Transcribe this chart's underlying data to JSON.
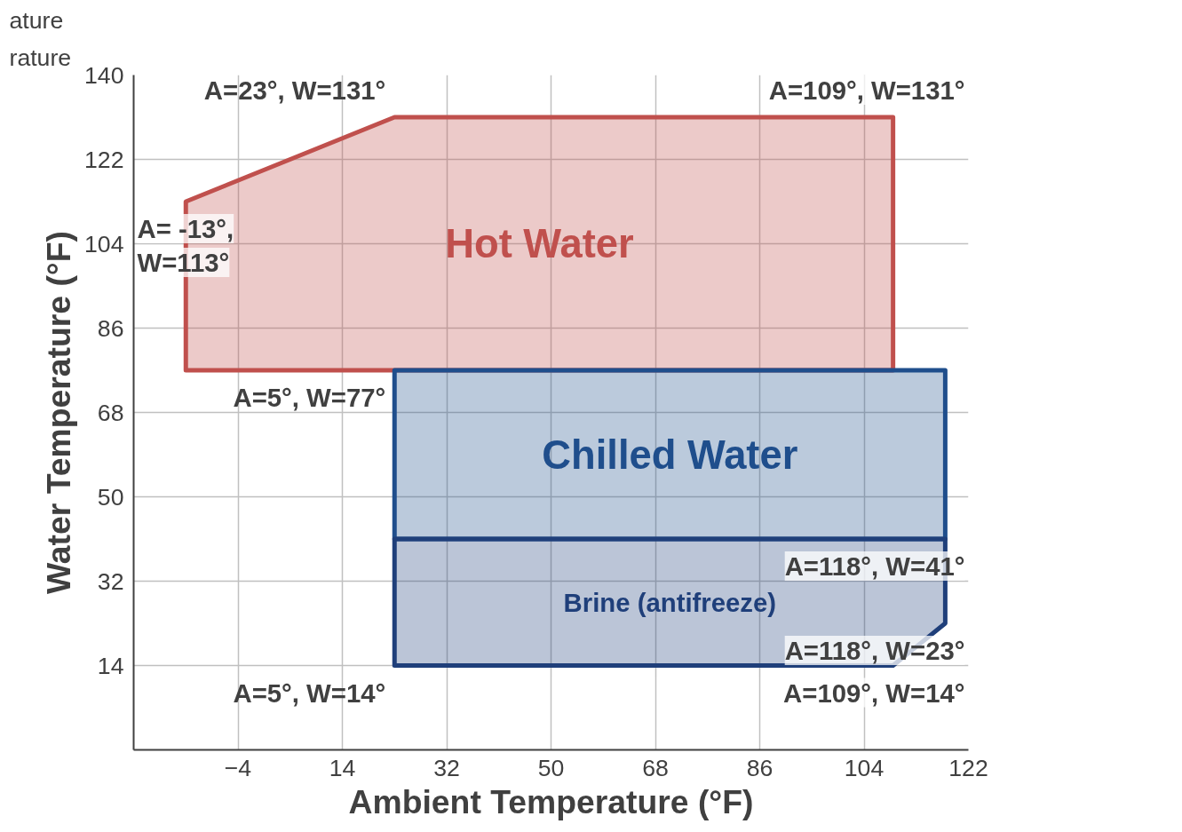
{
  "chart_data": {
    "type": "area",
    "xlabel": "Ambient Temperature (°F)",
    "ylabel": "Water Temperature (°F)",
    "xlim": [
      -22,
      122
    ],
    "ylim": [
      -4,
      140
    ],
    "xticks": [
      -4,
      14,
      32,
      50,
      68,
      86,
      104,
      122
    ],
    "yticks": [
      14,
      32,
      50,
      68,
      86,
      104,
      122,
      140
    ],
    "grid": true,
    "series": [
      {
        "name": "Hot Water",
        "color": "#c0504d",
        "x": [
          -13,
          -13,
          23,
          109,
          109
        ],
        "values": [
          77,
          113,
          131,
          131,
          77
        ]
      },
      {
        "name": "Chilled Water",
        "color": "#1f4e8c",
        "x": [
          23,
          23,
          118,
          118
        ],
        "values": [
          41,
          77,
          77,
          41
        ]
      },
      {
        "name": "Brine (antifreeze)",
        "color": "#1f3f7a",
        "x": [
          23,
          23,
          118,
          118,
          109
        ],
        "values": [
          14,
          41,
          41,
          23,
          14
        ]
      }
    ],
    "annotations": [
      "rature",
      "ature",
      {
        "text": "A=23°, W=131°",
        "x": 23,
        "y": 131
      },
      {
        "text": "A=109°, W=131°",
        "x": 109,
        "y": 131
      },
      {
        "text": "A= -13°,\nW=113°",
        "x": -13,
        "y": 113
      },
      {
        "text": "A=5°, W=77°",
        "x": 23,
        "y": 77
      },
      {
        "text": "A=118°, W=41°",
        "x": 118,
        "y": 41
      },
      {
        "text": "A=118°, W=23°",
        "x": 118,
        "y": 23
      },
      {
        "text": "A=5°, W=14°",
        "x": 23,
        "y": 14
      },
      {
        "text": "A=109°, W=14°",
        "x": 109,
        "y": 14
      }
    ]
  }
}
